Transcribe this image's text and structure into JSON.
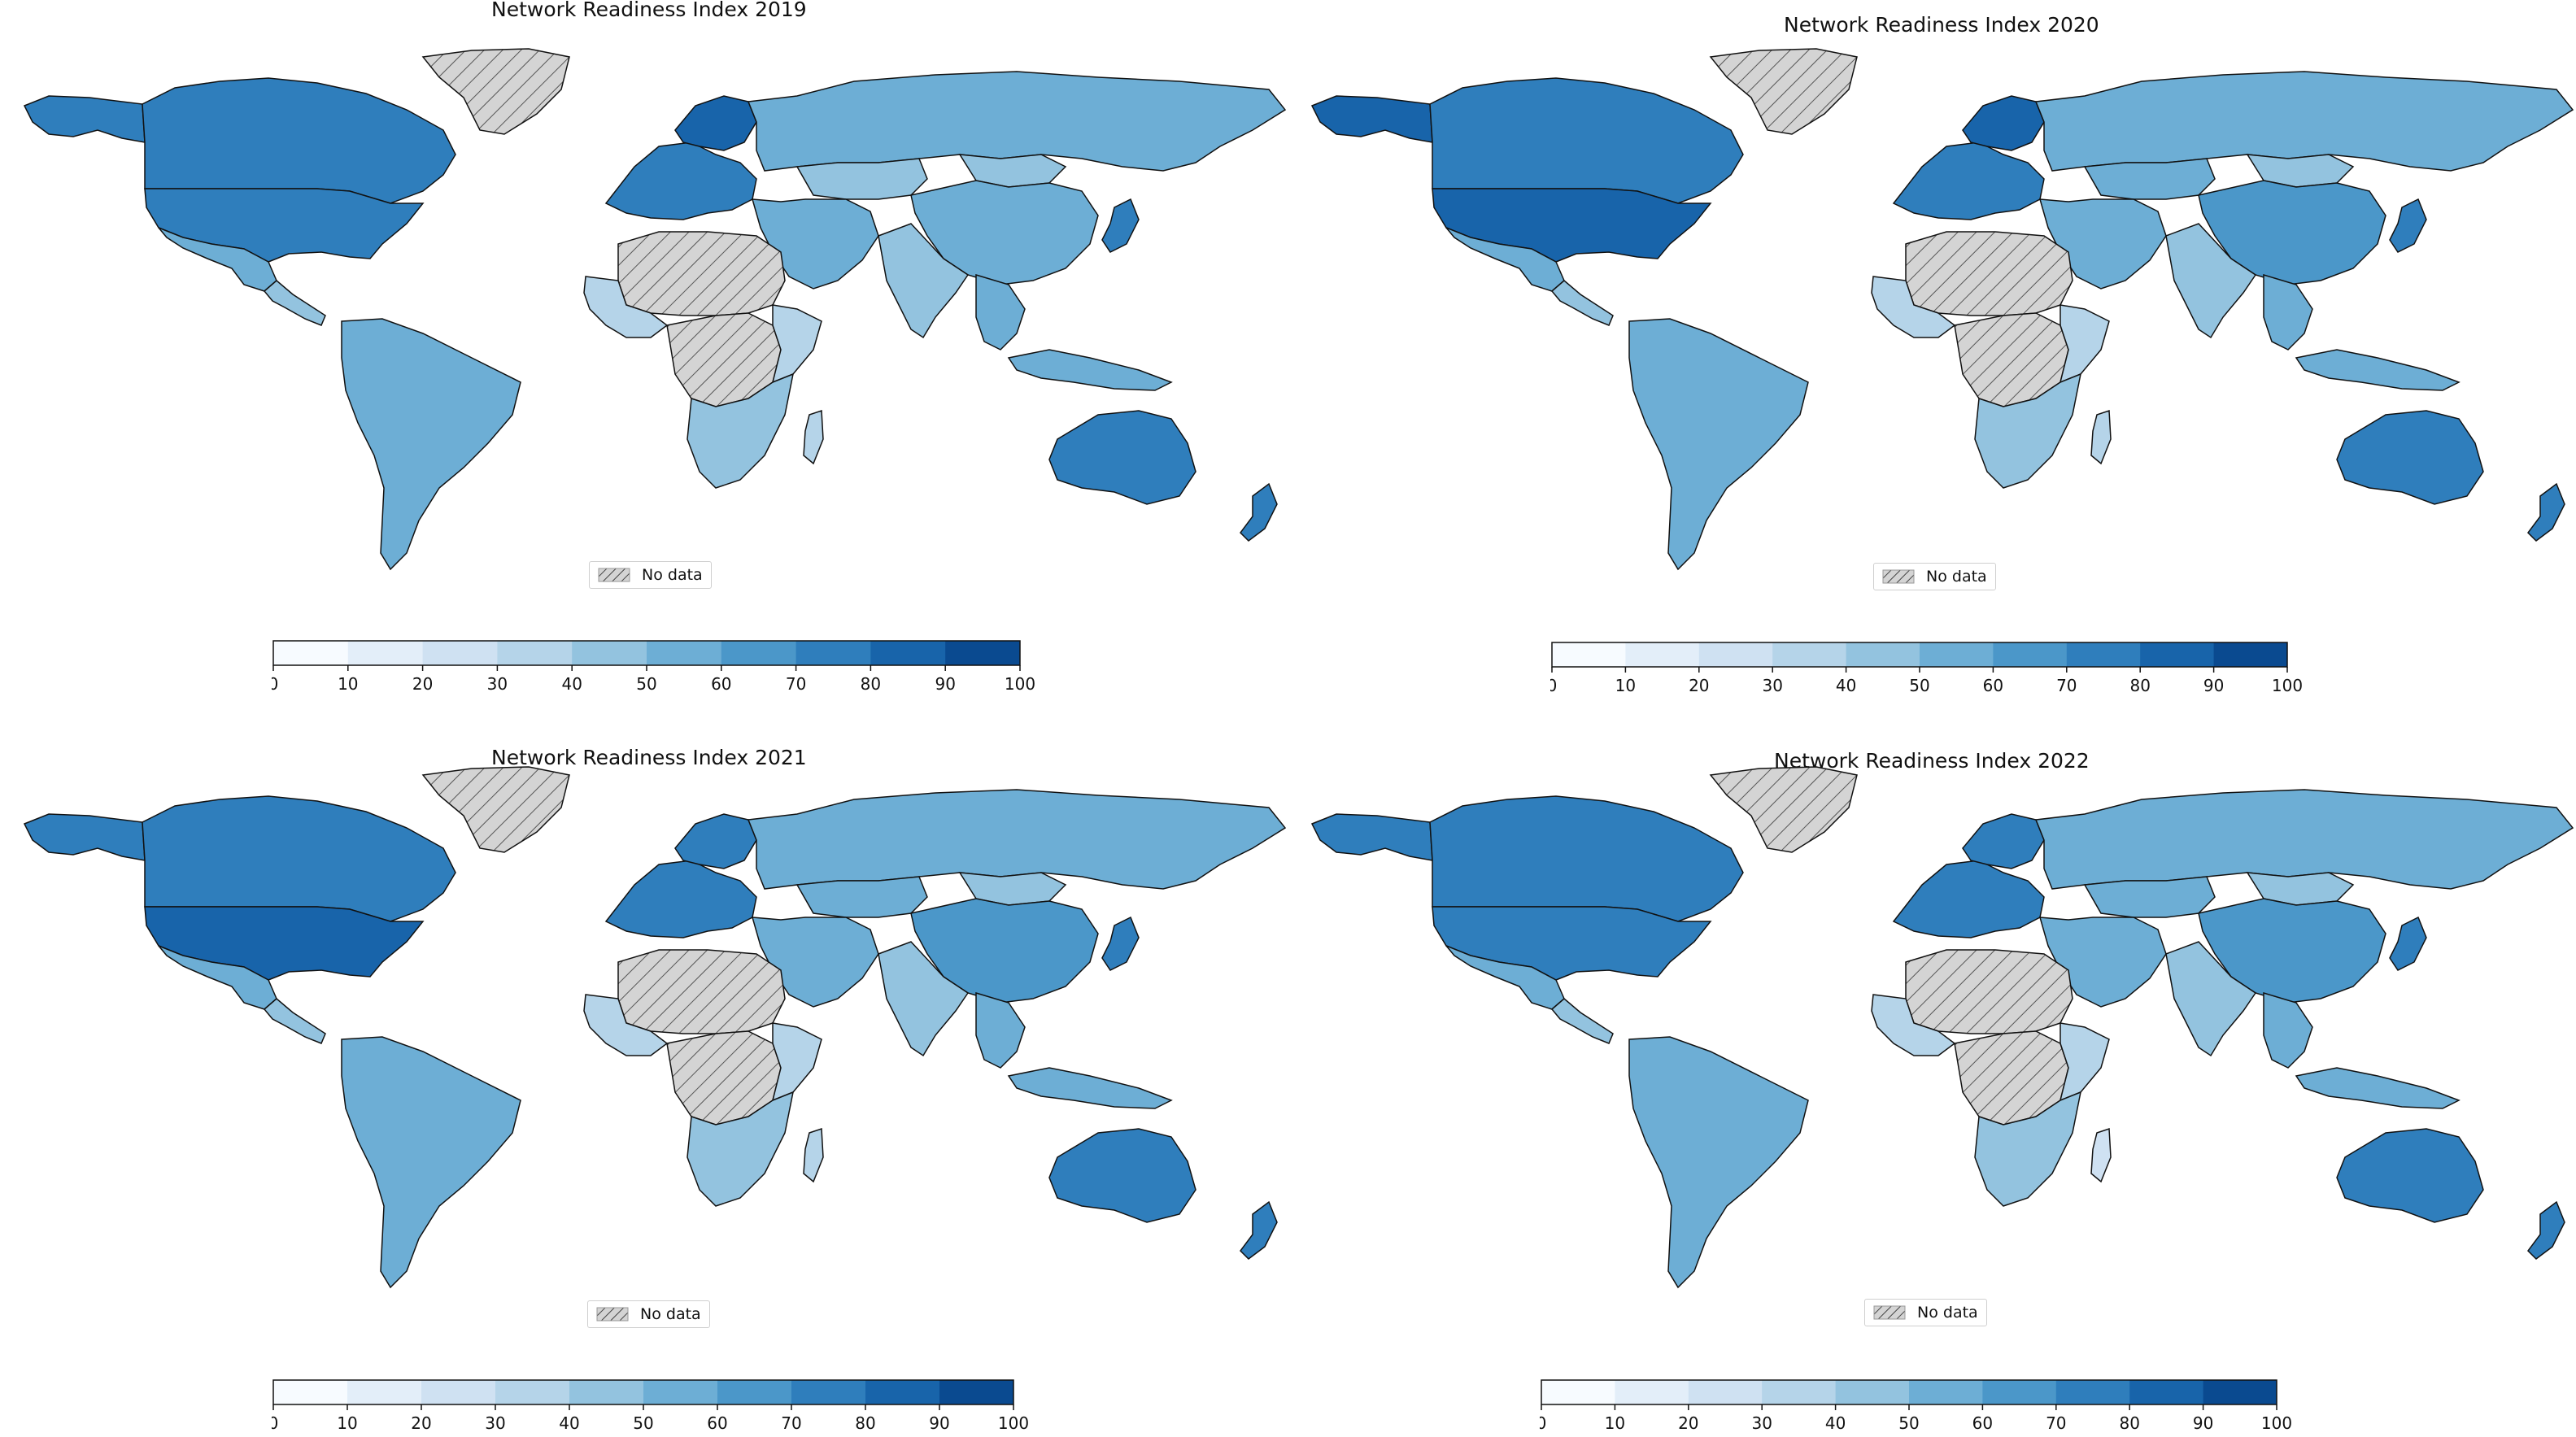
{
  "colors": {
    "scale": [
      "#f7fbff",
      "#e3eef9",
      "#cfe1f2",
      "#b5d4e9",
      "#93c3df",
      "#6daed5",
      "#4b97c9",
      "#2f7ebc",
      "#1864aa",
      "#0a4a90",
      "#08306b"
    ],
    "no_data_fill": "#d4d4d4",
    "border": "#111111"
  },
  "colorbar": {
    "ticks": [
      "0",
      "10",
      "20",
      "30",
      "40",
      "50",
      "60",
      "70",
      "80",
      "90",
      "100"
    ]
  },
  "legend": {
    "no_data_label": "No data"
  },
  "panels": [
    {
      "title": "Network Readiness Index 2019",
      "values": {
        "usa": 72,
        "canada": 71,
        "alaska": 72,
        "greenland": null,
        "mexico": 52,
        "central_america": 46,
        "south_america": 55,
        "europe": 70,
        "nordic": 80,
        "russia": 55,
        "kazakh": 48,
        "mongolia": 45,
        "china": 55,
        "india": 45,
        "middle_east": 50,
        "sahara": null,
        "west_africa": 35,
        "central_africa": null,
        "east_africa": 30,
        "south_africa": 40,
        "madagascar": 30,
        "seasia": 55,
        "japan": 73,
        "indonesia": 50,
        "australia": 72,
        "new_zealand": 70
      }
    },
    {
      "title": "Network Readiness Index 2020",
      "values": {
        "usa": 82,
        "canada": 72,
        "alaska": 80,
        "greenland": null,
        "mexico": 52,
        "central_america": 45,
        "south_america": 52,
        "europe": 72,
        "nordic": 80,
        "russia": 55,
        "kazakh": 50,
        "mongolia": 45,
        "china": 60,
        "india": 47,
        "middle_east": 55,
        "sahara": null,
        "west_africa": 30,
        "central_africa": null,
        "east_africa": 30,
        "south_africa": 40,
        "madagascar": 30,
        "seasia": 55,
        "japan": 72,
        "indonesia": 52,
        "australia": 72,
        "new_zealand": 72
      }
    },
    {
      "title": "Network Readiness Index 2021",
      "values": {
        "usa": 82,
        "canada": 72,
        "alaska": 74,
        "greenland": null,
        "mexico": 52,
        "central_america": 45,
        "south_america": 52,
        "europe": 72,
        "nordic": 78,
        "russia": 55,
        "kazakh": 52,
        "mongolia": 45,
        "china": 62,
        "india": 48,
        "middle_east": 58,
        "sahara": null,
        "west_africa": 32,
        "central_africa": null,
        "east_africa": 32,
        "south_africa": 42,
        "madagascar": 30,
        "seasia": 58,
        "japan": 72,
        "indonesia": 52,
        "australia": 72,
        "new_zealand": 70
      }
    },
    {
      "title": "Network Readiness Index 2022",
      "values": {
        "usa": 74,
        "canada": 72,
        "alaska": 74,
        "greenland": null,
        "mexico": 52,
        "central_america": 42,
        "south_america": 55,
        "europe": 72,
        "nordic": 78,
        "russia": 55,
        "kazakh": 52,
        "mongolia": 45,
        "china": 62,
        "india": 46,
        "middle_east": 55,
        "sahara": null,
        "west_africa": 32,
        "central_africa": null,
        "east_africa": 30,
        "south_africa": 40,
        "madagascar": 28,
        "seasia": 55,
        "japan": 72,
        "indonesia": 52,
        "australia": 72,
        "new_zealand": 70
      }
    }
  ]
}
